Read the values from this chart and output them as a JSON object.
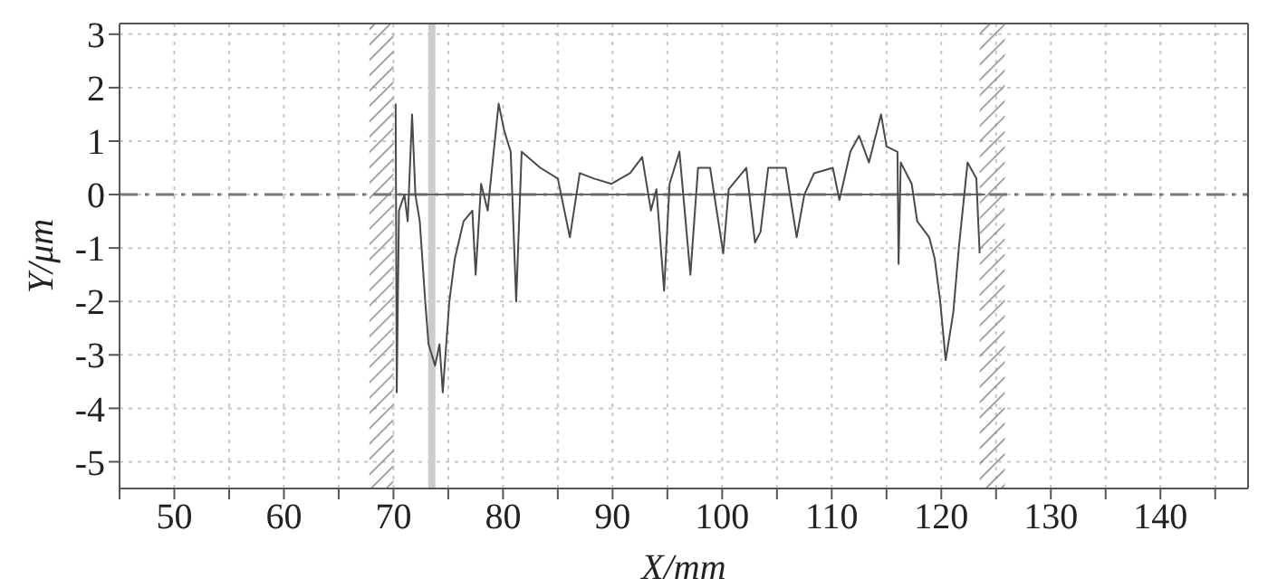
{
  "chart_data": {
    "type": "line",
    "xlabel": "X/mm",
    "ylabel": "Y/μm",
    "xlim": [
      45,
      148
    ],
    "ylim": [
      -5.5,
      3.2
    ],
    "xticks": [
      {
        "value": 45,
        "label": null
      },
      50,
      {
        "value": 55,
        "label": null
      },
      60,
      {
        "value": 65,
        "label": null
      },
      70,
      {
        "value": 75,
        "label": null
      },
      80,
      {
        "value": 85,
        "label": null
      },
      90,
      {
        "value": 95,
        "label": null
      },
      100,
      {
        "value": 105,
        "label": null
      },
      110,
      {
        "value": 115,
        "label": null
      },
      120,
      {
        "value": 125,
        "label": null
      },
      130,
      {
        "value": 135,
        "label": null
      },
      140,
      {
        "value": 145,
        "label": null
      }
    ],
    "yticks": [
      -5,
      -4,
      -3,
      -2,
      -1,
      0,
      1,
      2,
      3
    ],
    "grid": true,
    "marker": "none",
    "line_style": "solid",
    "bands": [
      {
        "axis": "x",
        "from": 67.8,
        "to": 70,
        "color": "#888888"
      },
      {
        "axis": "x",
        "from": 123.5,
        "to": 125.8,
        "color": "#888888"
      }
    ],
    "ref_lines": [
      {
        "axis": "y",
        "value": 0,
        "color": "#777777",
        "line_style": "dashed"
      },
      {
        "axis": "x",
        "value": 73.5,
        "color": "#cccccc",
        "line_style": "solid"
      }
    ],
    "series": [
      {
        "color": "#666666",
        "x": [
          70.2,
          124
        ],
        "values": [
          0,
          0
        ]
      },
      {
        "color": "#4a4a4a",
        "x": [
          70.2,
          70.3,
          70.5,
          71.0,
          71.3,
          71.7,
          72.0,
          72.4,
          72.9,
          73.2,
          73.8,
          74.2,
          74.5,
          75.1,
          75.6,
          76.4,
          77.2,
          77.5,
          78.0,
          78.6,
          79.1,
          79.6,
          80.1,
          80.7,
          81.2,
          81.7,
          83.4,
          85.0,
          86.1,
          87.0,
          88.3,
          89.9,
          91.6,
          92.7,
          93.5,
          94.0,
          94.7,
          95.2,
          96.1,
          97.1,
          97.8,
          98.9,
          100.1,
          100.6,
          101.4,
          102.2,
          103.0,
          103.5,
          104.2,
          105.8,
          106.8,
          107.5,
          108.4,
          110.1,
          110.7,
          111.7,
          112.5,
          113.4,
          114.5,
          115.0,
          116.0,
          116.1,
          116.3,
          117.3,
          117.8,
          118.9,
          119.4,
          119.9,
          120.4,
          121.1,
          121.6,
          122.4,
          123.2,
          123.5
        ],
        "values": [
          1.7,
          -3.7,
          -0.3,
          0.0,
          -0.5,
          1.5,
          0.0,
          -0.5,
          -2.0,
          -2.8,
          -3.2,
          -2.8,
          -3.7,
          -2.0,
          -1.2,
          -0.5,
          -0.3,
          -1.5,
          0.2,
          -0.3,
          0.7,
          1.7,
          1.2,
          0.8,
          -2.0,
          0.8,
          0.5,
          0.3,
          -0.8,
          0.4,
          0.3,
          0.2,
          0.4,
          0.7,
          -0.3,
          0.1,
          -1.8,
          0.2,
          0.8,
          -1.5,
          0.5,
          0.5,
          -1.1,
          0.1,
          0.3,
          0.5,
          -0.9,
          -0.7,
          0.5,
          0.5,
          -0.8,
          0.0,
          0.4,
          0.5,
          -0.1,
          0.8,
          1.1,
          0.6,
          1.5,
          0.9,
          0.8,
          -1.3,
          0.6,
          0.2,
          -0.5,
          -0.8,
          -1.2,
          -2.0,
          -3.1,
          -2.2,
          -1.0,
          0.6,
          0.3,
          -1.1
        ]
      }
    ]
  }
}
